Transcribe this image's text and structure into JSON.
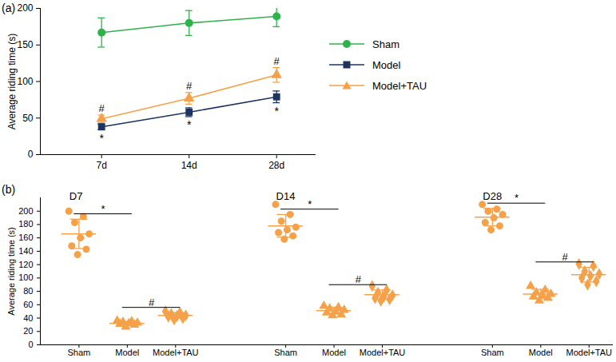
{
  "chart_data": [
    {
      "type": "line",
      "title": "(a)",
      "x": [
        "7d",
        "14d",
        "28d"
      ],
      "ylabel": "Average riding time (s)",
      "ylim": [
        0,
        200
      ],
      "yticks": [
        0,
        50,
        100,
        150,
        200
      ],
      "grid": false,
      "legend": "right",
      "series": [
        {
          "name": "Sham",
          "color": "#2fb24c",
          "marker": "circle",
          "values": [
            167,
            180,
            189
          ],
          "errors": [
            20,
            17,
            14
          ]
        },
        {
          "name": "Model",
          "color": "#1d3461",
          "marker": "square",
          "values": [
            38,
            58,
            79
          ],
          "errors": [
            4,
            6,
            8
          ]
        },
        {
          "name": "Model+TAU",
          "color": "#f5a14a",
          "marker": "triangle",
          "values": [
            49,
            77,
            109
          ],
          "errors": [
            5,
            8,
            10
          ]
        }
      ],
      "annotations": [
        {
          "x": "7d",
          "series": "Model",
          "text": "*"
        },
        {
          "x": "14d",
          "series": "Model",
          "text": "*"
        },
        {
          "x": "28d",
          "series": "Model",
          "text": "*"
        },
        {
          "x": "7d",
          "series": "Model+TAU",
          "text": "#"
        },
        {
          "x": "14d",
          "series": "Model+TAU",
          "text": "#"
        },
        {
          "x": "28d",
          "series": "Model+TAU",
          "text": "#"
        }
      ]
    },
    {
      "type": "scatter",
      "title": "(b)",
      "categories": [
        "Sham",
        "Model",
        "Model+TAU"
      ],
      "markers": [
        "circle",
        "triangle",
        "diamond"
      ],
      "color": "#f5a14a",
      "ylabel": "Average riding time (s)",
      "ylim": [
        0,
        220
      ],
      "yticks": [
        0,
        20,
        40,
        60,
        80,
        100,
        120,
        140,
        160,
        180,
        200
      ],
      "grid": false,
      "panels": [
        {
          "title": "D7",
          "points": [
            [
              200,
              192,
              183,
              166,
              160,
              148,
              143,
              135
            ],
            [
              36,
              35,
              34,
              33,
              32,
              31,
              30,
              27
            ],
            [
              50,
              48,
              46,
              44,
              43,
              42,
              40,
              38
            ]
          ],
          "mean": [
            166,
            32,
            44
          ],
          "sd": [
            22,
            3,
            4
          ],
          "comparisons": [
            {
              "groups": [
                "Sham",
                "Model"
              ],
              "text": "*"
            },
            {
              "groups": [
                "Model",
                "Model+TAU"
              ],
              "text": "#"
            }
          ]
        },
        {
          "title": "D14",
          "points": [
            [
              210,
              195,
              185,
              176,
              172,
              168,
              163,
              158
            ],
            [
              58,
              56,
              54,
              52,
              50,
              48,
              45,
              44
            ],
            [
              88,
              82,
              78,
              74,
              72,
              70,
              68,
              66
            ]
          ],
          "mean": [
            178,
            51,
            75
          ],
          "sd": [
            17,
            5,
            7
          ],
          "comparisons": [
            {
              "groups": [
                "Sham",
                "Model"
              ],
              "text": "*"
            },
            {
              "groups": [
                "Model",
                "Model+TAU"
              ],
              "text": "#"
            }
          ]
        },
        {
          "title": "D28",
          "points": [
            [
              210,
              203,
              200,
              195,
              190,
              183,
              178,
              172
            ],
            [
              88,
              82,
              78,
              76,
              74,
              72,
              70,
              66
            ],
            [
              121,
              118,
              110,
              106,
              103,
              100,
              95,
              90
            ]
          ],
          "mean": [
            191,
            76,
            105
          ],
          "sd": [
            13,
            7,
            11
          ],
          "comparisons": [
            {
              "groups": [
                "Sham",
                "Model"
              ],
              "text": "*"
            },
            {
              "groups": [
                "Model",
                "Model+TAU"
              ],
              "text": "#"
            }
          ]
        }
      ]
    }
  ]
}
